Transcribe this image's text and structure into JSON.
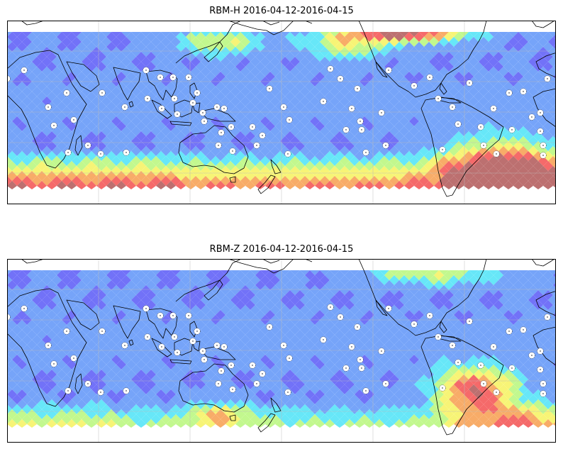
{
  "panels": [
    {
      "title": "RBM-H 2016-04-12-2016-04-15",
      "colormap": [
        "#6a6af8",
        "#6f9ff9",
        "#5fe6f8",
        "#bff888",
        "#f7f36f",
        "#f8a860",
        "#f46262",
        "#b86868"
      ],
      "field_description": "high values in southern ocean band and north Pacific, hotspot off south-east South America",
      "max_category_south_band": 7,
      "max_category_hotspot": 7
    },
    {
      "title": "RBM-Z 2016-04-12-2016-04-15",
      "colormap": [
        "#6a6af8",
        "#6f9ff9",
        "#5fe6f8",
        "#bff888",
        "#f7f36f",
        "#f8a860",
        "#f46262",
        "#b86868"
      ],
      "field_description": "weaker southern band, strong hotspot over south-east South America",
      "max_category_south_band": 5,
      "max_category_hotspot": 6
    }
  ],
  "station_marker_icon": "dotted-circle-station-icon",
  "gridlines": "on",
  "coastline_color": "#000000"
}
